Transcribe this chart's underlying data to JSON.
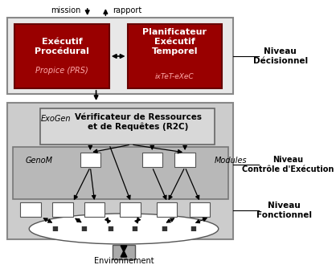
{
  "bg_color": "#ffffff",
  "title_text": "Environnement",
  "mission_text": "mission",
  "rapport_text": "rapport",
  "niveau_decisionnel": "Niveau\nDécisionnel",
  "niveau_controle": "Niveau\nContrôle d'Exécution",
  "niveau_fonctionnel": "Niveau\nFonctionnel",
  "exec_proc_title": "Exécutif\nProcédural",
  "exec_proc_sub": "Propice (PRS)",
  "planif_title": "Planificateur\nExécutif\nTemporel",
  "planif_sub": "ixTeT-eXeC",
  "verif_title": "Vérificateur de Ressources\net de Requêtes (R2C)",
  "exogen_text": "ExoGen",
  "genom_text": "GenoM",
  "modules_text": "Modules",
  "dark_red": "#990000",
  "light_gray": "#d0d0d0",
  "medium_gray": "#b8b8b8",
  "white": "#ffffff",
  "box_outline": "#555555",
  "text_dark": "#000000",
  "text_white": "#ffffff"
}
